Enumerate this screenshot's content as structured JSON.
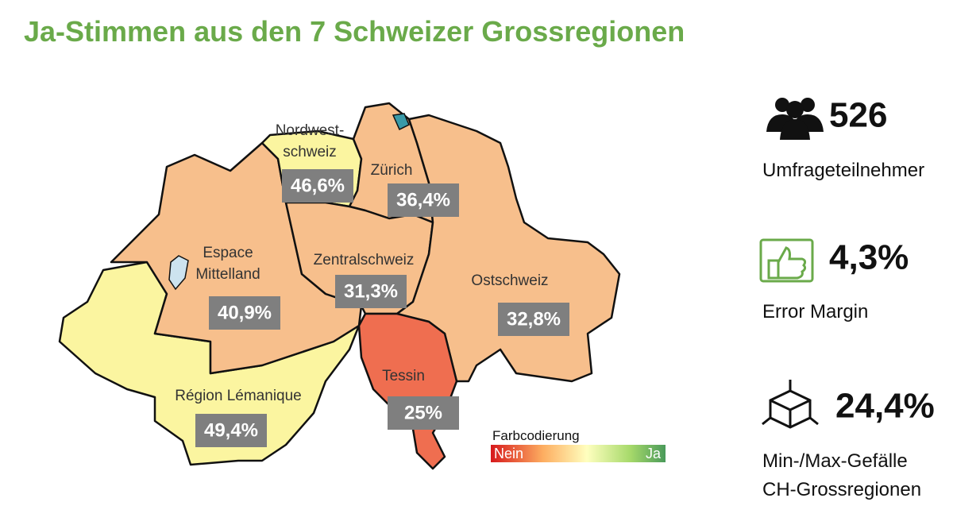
{
  "title": "Ja-Stimmen aus den 7 Schweizer Grossregionen",
  "regions": [
    {
      "name": [
        "Nordwest-",
        "schweiz"
      ],
      "value": "46,6%"
    },
    {
      "name": [
        "Zürich"
      ],
      "value": "36,4%"
    },
    {
      "name": [
        "Espace",
        "Mittelland"
      ],
      "value": "40,9%"
    },
    {
      "name": [
        "Zentralschweiz"
      ],
      "value": "31,3%"
    },
    {
      "name": [
        "Ostschweiz"
      ],
      "value": "32,8%"
    },
    {
      "name": [
        "Région Lémanique"
      ],
      "value": "49,4%"
    },
    {
      "name": [
        "Tessin"
      ],
      "value": "25%"
    }
  ],
  "legend": {
    "title": "Farbcodierung",
    "low": "Nein",
    "high": "Ja"
  },
  "stats": [
    {
      "value": "526",
      "label": [
        "Umfrageteilnehmer"
      ]
    },
    {
      "value": "4,3%",
      "label": [
        "Error Margin"
      ]
    },
    {
      "value": "24,4%",
      "label": [
        "Min-/Max-Gefälle",
        "CH-Grossregionen"
      ]
    }
  ]
}
